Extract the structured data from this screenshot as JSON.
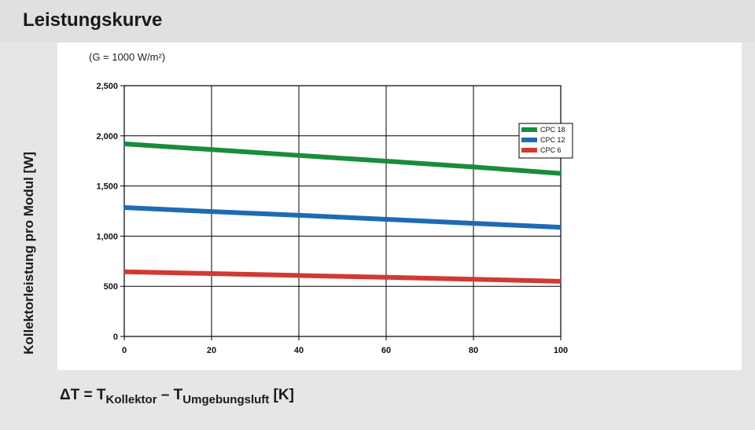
{
  "page": {
    "title": "Leistungskurve"
  },
  "chart_data": {
    "type": "line",
    "subtitle": "(G = 1000 W/m²)",
    "ylabel": "Kollektorleistung pro Modul [W]",
    "xlabel": {
      "delta": "ΔT = T",
      "sub1": "Kollektor",
      "minus": " – T",
      "sub2": "Umgebungsluft",
      "unit": " [K]"
    },
    "x": [
      0,
      20,
      40,
      60,
      80,
      100
    ],
    "xlim": [
      0,
      100
    ],
    "ylim": [
      0,
      2500
    ],
    "x_ticks": [
      0,
      20,
      40,
      60,
      80,
      100
    ],
    "x_tick_labels": [
      "0",
      "20",
      "40",
      "60",
      "80",
      "100"
    ],
    "y_ticks": [
      0,
      500,
      1000,
      1500,
      2000,
      2500
    ],
    "y_tick_labels": [
      "0",
      "500",
      "1,000",
      "1,500",
      "2,000",
      "2,500"
    ],
    "grid": true,
    "legend_position": "top-right",
    "series": [
      {
        "name": "CPC 18",
        "color": "#1a8c3c",
        "values": [
          1920,
          1863,
          1805,
          1748,
          1690,
          1625
        ]
      },
      {
        "name": "CPC 12",
        "color": "#1f6bb3",
        "values": [
          1285,
          1245,
          1208,
          1168,
          1128,
          1088
        ]
      },
      {
        "name": "CPC 6",
        "color": "#d03a33",
        "values": [
          645,
          627,
          608,
          590,
          570,
          550
        ]
      }
    ]
  }
}
